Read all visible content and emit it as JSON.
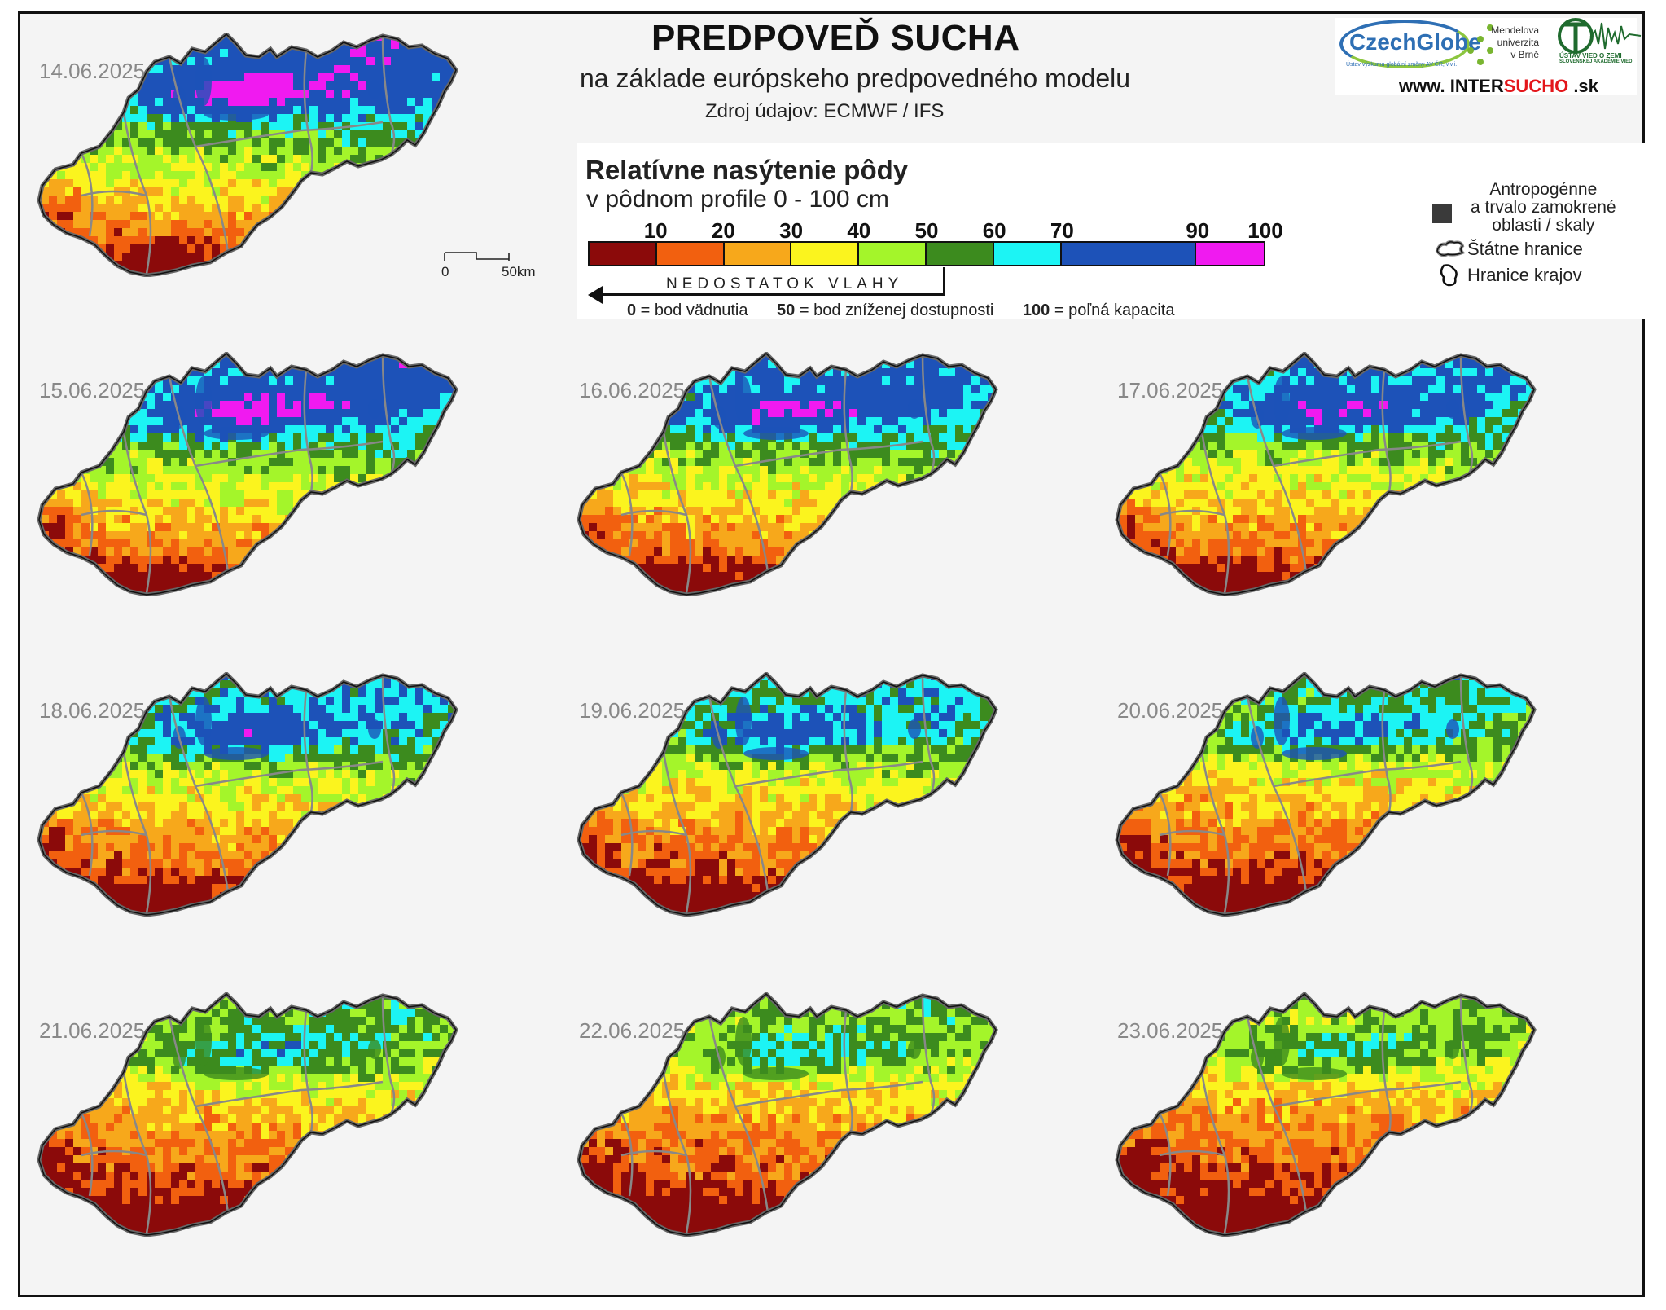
{
  "title": "PREDPOVEĎ SUCHA",
  "subtitle": "na základe európskeho predpovedného modelu",
  "source": "Zdroj údajov: ECMWF / IFS",
  "logos": {
    "czechglobe": "CzechGlobe",
    "czechglobe_sub": "Ústav výzkumu globální změny AV ČR, v.v.i.",
    "mendel_line1": "Mendelova",
    "mendel_line2": "univerzita",
    "mendel_line3": "v Brně",
    "ustav": "ÚSTAV VIED O ZEMI",
    "ustav_sub": "SLOVENSKEJ AKADÉMIE VIED",
    "www_prefix": "www. INTER",
    "www_accent": "SUCHO",
    "www_suffix": " .sk"
  },
  "legend": {
    "title": "Relatívne nasýtenie pôdy",
    "subtitle": "v pôdnom profile 0 - 100 cm",
    "ticks": [
      "10",
      "20",
      "30",
      "40",
      "50",
      "60",
      "70",
      "90",
      "100"
    ],
    "classes": [
      {
        "from": 0,
        "to": 10,
        "color": "#8b0a0a"
      },
      {
        "from": 10,
        "to": 20,
        "color": "#f2600f"
      },
      {
        "from": 20,
        "to": 30,
        "color": "#f7a81b"
      },
      {
        "from": 30,
        "to": 40,
        "color": "#fbf41e"
      },
      {
        "from": 40,
        "to": 50,
        "color": "#a4f52a"
      },
      {
        "from": 50,
        "to": 60,
        "color": "#3c8b1e"
      },
      {
        "from": 60,
        "to": 70,
        "color": "#1cf4f4"
      },
      {
        "from": 70,
        "to": 90,
        "color": "#1d52b8"
      },
      {
        "from": 90,
        "to": 100,
        "color": "#f01af0"
      }
    ],
    "deficit_label": "NEDOSTATOK VLAHY",
    "note_0_num": "0",
    "note_0_text": " = bod vädnutia",
    "note_50_num": "50",
    "note_50_text": " = bod zníženej dostupnosti",
    "note_100_num": "100",
    "note_100_text": " = poľná kapacita",
    "anthro_line1": "Antropogénne",
    "anthro_line2": "a trvalo zamokrené",
    "anthro_line3": "oblasti / skaly",
    "state_border": "Štátne hranice",
    "region_border": "Hranice krajov",
    "anthro_color": "#3a3a3a"
  },
  "scale": {
    "zero": "0",
    "fifty": "50km"
  },
  "maps": [
    {
      "date": "14.06.2025",
      "wetness": 1.0
    },
    {
      "date": "15.06.2025",
      "wetness": 0.93
    },
    {
      "date": "16.06.2025",
      "wetness": 0.86
    },
    {
      "date": "17.06.2025",
      "wetness": 0.8
    },
    {
      "date": "18.06.2025",
      "wetness": 0.7
    },
    {
      "date": "19.06.2025",
      "wetness": 0.62
    },
    {
      "date": "20.06.2025",
      "wetness": 0.52
    },
    {
      "date": "21.06.2025",
      "wetness": 0.42
    },
    {
      "date": "22.06.2025",
      "wetness": 0.36
    },
    {
      "date": "23.06.2025",
      "wetness": 0.3
    }
  ]
}
